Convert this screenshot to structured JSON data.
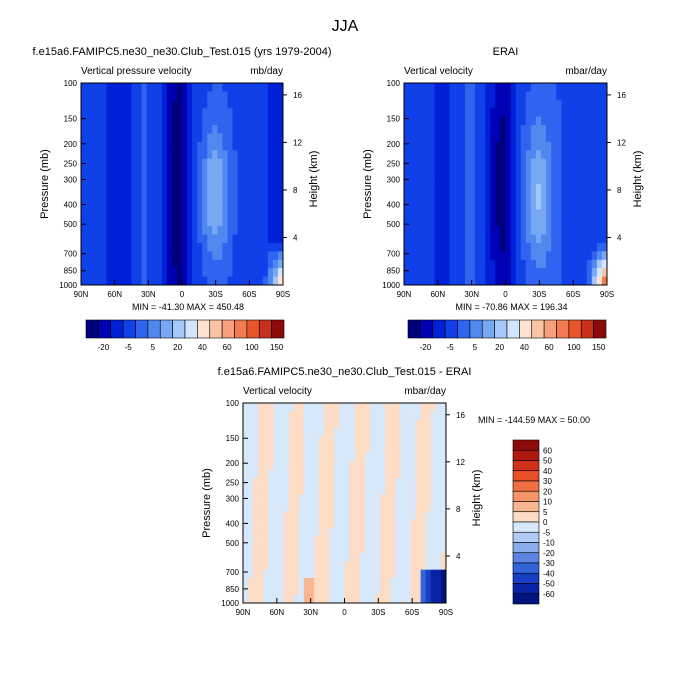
{
  "figure": {
    "title": "JJA"
  },
  "colors": {
    "mean_scale": [
      "#00007a",
      "#0000b4",
      "#0020d8",
      "#1040e8",
      "#2e64f0",
      "#5088f0",
      "#78a8f4",
      "#a4c8fa",
      "#d2e6ff",
      "#ffe2d2",
      "#fcc4a4",
      "#f8a07c",
      "#f47a52",
      "#e8542c",
      "#c8301c",
      "#8c0a0a"
    ],
    "diff_scale": [
      "#8c0a0a",
      "#b01a0e",
      "#d03018",
      "#e85028",
      "#f07044",
      "#f49468",
      "#f8b690",
      "#fcdcc4",
      "#d6e8fa",
      "#b0ccf4",
      "#88acec",
      "#5c84e4",
      "#3464dc",
      "#1840c4",
      "#0824a4",
      "#001480"
    ]
  },
  "chart_data": [
    {
      "type": "heatmap",
      "title": "f.e15a6.FAMIPC5.ne30_ne30.Club_Test.015 (yrs 1979-2004)",
      "left_string": "Vertical pressure velocity",
      "right_string": "mb/day",
      "ylabel": "Pressure (mb)",
      "ylabel_right": "Height (km)",
      "x_ticks": [
        "90N",
        "60N",
        "30N",
        "0",
        "30S",
        "60S",
        "90S"
      ],
      "y_ticks": [
        "100",
        "150",
        "200",
        "250",
        "300",
        "400",
        "500",
        "700",
        "850",
        "1000"
      ],
      "y_right_ticks": [
        "16",
        "12",
        "8",
        "4"
      ],
      "stats": "MIN = -41.30   MAX = 450.48",
      "colorbar_labels": [
        "-20",
        "-5",
        "5",
        "20",
        "40",
        "60",
        "100",
        "150"
      ],
      "ylim": [
        1000,
        100
      ],
      "xlim": [
        "90N",
        "90S"
      ]
    },
    {
      "type": "heatmap",
      "title": "ERAI",
      "left_string": "Vertical velocity",
      "right_string": "mbar/day",
      "ylabel": "Pressure (mb)",
      "ylabel_right": "Height (km)",
      "x_ticks": [
        "90N",
        "60N",
        "30N",
        "0",
        "30S",
        "60S",
        "90S"
      ],
      "y_ticks": [
        "100",
        "150",
        "200",
        "250",
        "300",
        "400",
        "500",
        "700",
        "850",
        "1000"
      ],
      "y_right_ticks": [
        "16",
        "12",
        "8",
        "4"
      ],
      "stats": "MIN = -70.86   MAX = 196.34",
      "colorbar_labels": [
        "-20",
        "-5",
        "5",
        "20",
        "40",
        "60",
        "100",
        "150"
      ],
      "ylim": [
        1000,
        100
      ],
      "xlim": [
        "90N",
        "90S"
      ]
    },
    {
      "type": "heatmap",
      "title": "f.e15a6.FAMIPC5.ne30_ne30.Club_Test.015 - ERAI",
      "left_string": "Vertical velocity",
      "right_string": "mbar/day",
      "ylabel": "Pressure (mb)",
      "ylabel_right": "Height (km)",
      "x_ticks": [
        "90N",
        "60N",
        "30N",
        "0",
        "30S",
        "60S",
        "90S"
      ],
      "y_ticks": [
        "100",
        "150",
        "200",
        "250",
        "300",
        "400",
        "500",
        "700",
        "850",
        "1000"
      ],
      "y_right_ticks": [
        "16",
        "12",
        "8",
        "4"
      ],
      "stats": "MIN = -144.59   MAX =  50.00",
      "colorbar_labels": [
        "60",
        "50",
        "40",
        "30",
        "20",
        "10",
        "5",
        "0",
        "-5",
        "-10",
        "-20",
        "-30",
        "-40",
        "-50",
        "-60"
      ],
      "ylim": [
        1000,
        100
      ],
      "xlim": [
        "90N",
        "90S"
      ]
    }
  ]
}
